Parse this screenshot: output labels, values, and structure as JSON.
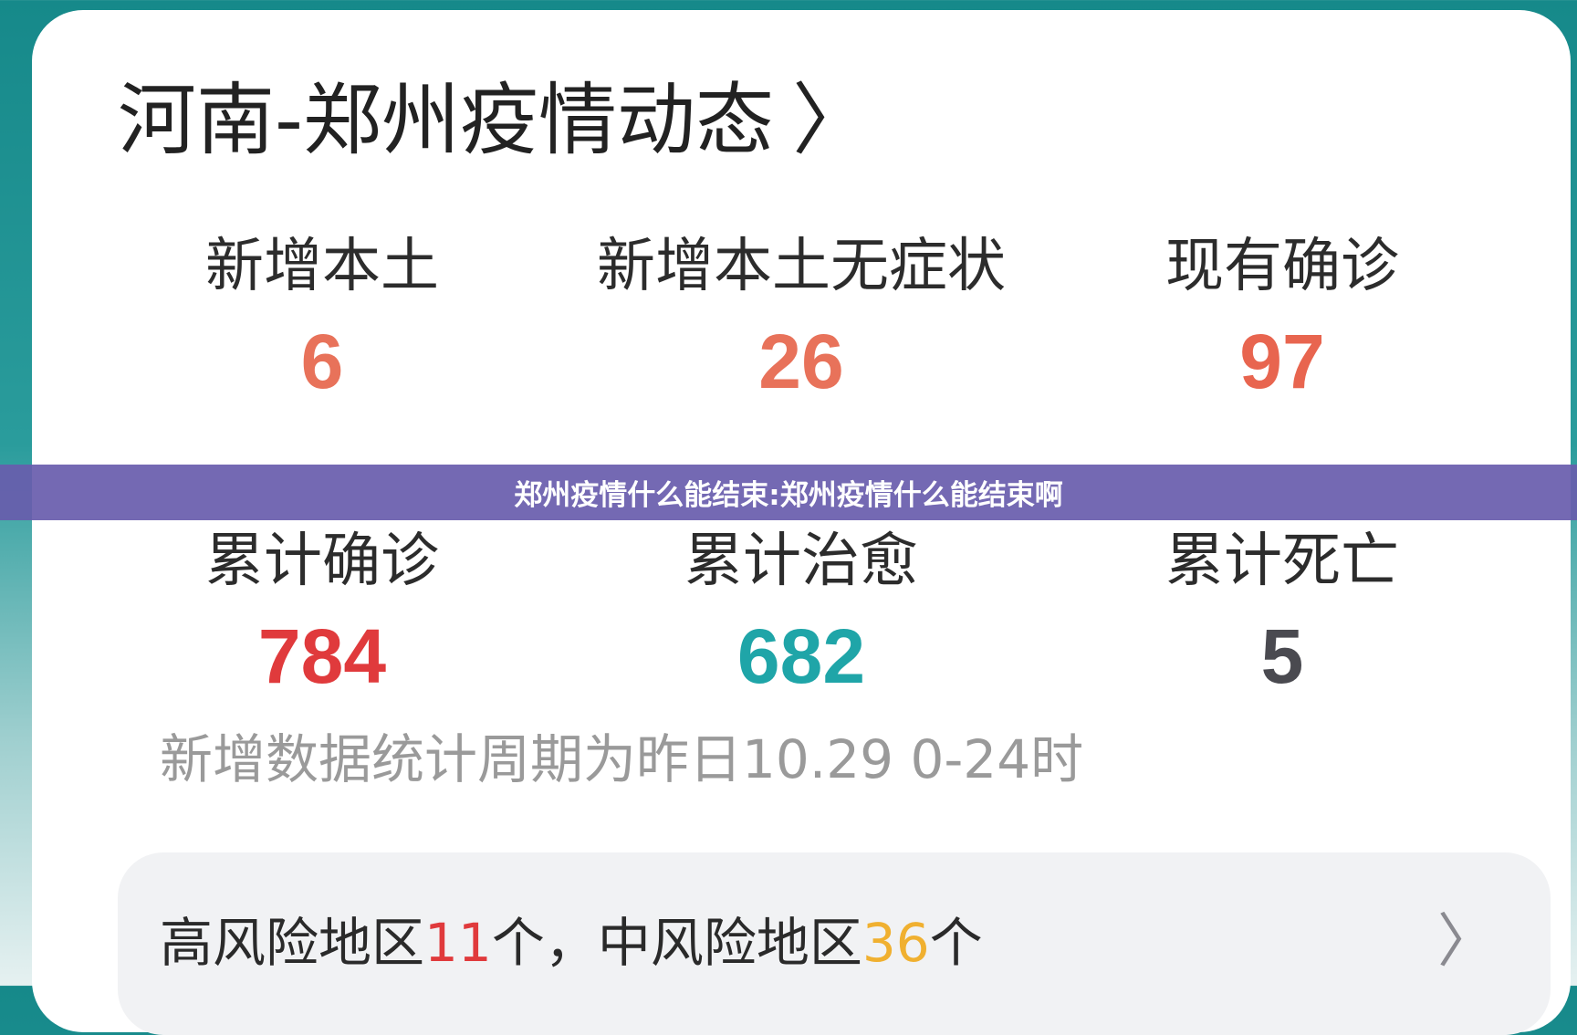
{
  "card": {
    "title": "河南-郑州疫情动态",
    "title_icon": "chevron-right-icon",
    "stats": [
      {
        "label": "新增本土",
        "value": "6",
        "color": "#e8725a"
      },
      {
        "label": "新增本土无症状",
        "value": "26",
        "color": "#e8725a"
      },
      {
        "label": "现有确诊",
        "value": "97",
        "color": "#e8654f"
      },
      {
        "label": "累计确诊",
        "value": "784",
        "color": "#e03a3c"
      },
      {
        "label": "累计治愈",
        "value": "682",
        "color": "#1fa5a8"
      },
      {
        "label": "累计死亡",
        "value": "5",
        "color": "#4a4a50"
      }
    ],
    "note": "新增数据统计周期为昨日10.29 0-24时",
    "risk": {
      "prefix": "高风险地区",
      "high_count": "11",
      "mid_text": "个，中风险地区",
      "mid_count": "36",
      "suffix": "个",
      "high_color": "#e03a3c",
      "mid_color": "#f0b030",
      "icon": "chevron-right-icon"
    }
  },
  "banner": {
    "text": "郑州疫情什么能结束:郑州疫情什么能结束啊"
  }
}
